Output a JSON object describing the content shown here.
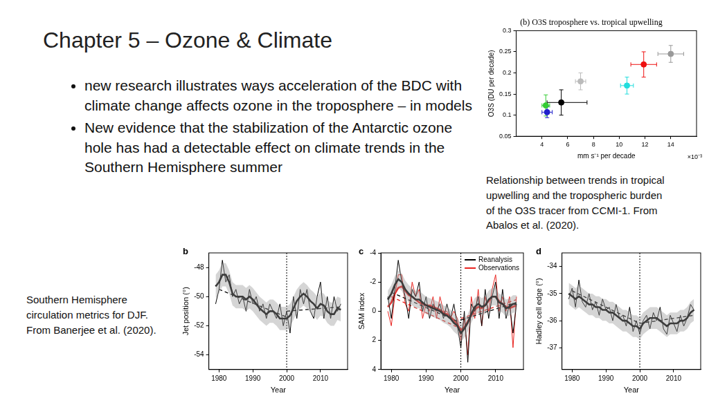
{
  "slide": {
    "title": "Chapter 5 – Ozone & Climate",
    "bullets": [
      "new research illustrates ways acceleration of the BDC with climate change affects ozone in the troposphere – in models",
      "New evidence that the stabilization of the Antarctic ozone hole has had a detectable effect on climate trends in the Southern Hemisphere summer"
    ],
    "captions": [
      [
        "Relationship between trends in tropical",
        "upwelling and the tropospheric burden",
        "of the O3S tracer from CCMI-1. From",
        "Abalos et al. (2020)."
      ],
      [
        "Southern Hemisphere",
        "circulation metrics for DJF.",
        "From Banerjee et al. (2020)."
      ]
    ]
  },
  "chart_data": [
    {
      "type": "scatter",
      "title": "(b) O3S troposphere vs. tropical upwelling",
      "x_label": "mm s⁻¹ per decade",
      "x_multiplier": "×10⁻³",
      "y_label": "O3S (DU per decade)",
      "xlim": [
        2,
        16
      ],
      "xticks": [
        4,
        6,
        8,
        10,
        12,
        14
      ],
      "ylim": [
        0.05,
        0.3
      ],
      "yticks": [
        0.05,
        0.1,
        0.15,
        0.2,
        0.25,
        0.3
      ],
      "grid": false,
      "series": [
        {
          "marker": "circle",
          "x": [
            4.3,
            4.4,
            5.5,
            7.0,
            10.6,
            11.9,
            14.0
          ],
          "values": [
            0.123,
            0.107,
            0.13,
            0.18,
            0.17,
            0.22,
            0.245
          ],
          "colors": [
            "#33cc33",
            "#1f1fcc",
            "#000000",
            "#bbbbbb",
            "#22dddd",
            "#ee1111",
            "#999999"
          ],
          "xerr": [
            [
              0.3,
              0.3
            ],
            [
              0.4,
              0.4
            ],
            [
              1.1,
              2.0
            ],
            [
              0.4,
              0.4
            ],
            [
              0.5,
              0.5
            ],
            [
              1.0,
              1.0
            ],
            [
              1.0,
              1.0
            ]
          ],
          "yerr": [
            [
              0.025,
              0.025
            ],
            [
              0.013,
              0.013
            ],
            [
              0.03,
              0.03
            ],
            [
              0.02,
              0.02
            ],
            [
              0.02,
              0.02
            ],
            [
              0.03,
              0.03
            ],
            [
              0.02,
              0.02
            ]
          ]
        }
      ]
    },
    {
      "type": "line",
      "panel": "b",
      "x_label": "Year",
      "y_label": "Jet position (°)",
      "x": [
        1979,
        1980,
        1981,
        1982,
        1983,
        1984,
        1985,
        1986,
        1987,
        1988,
        1989,
        1990,
        1991,
        1992,
        1993,
        1994,
        1995,
        1996,
        1997,
        1998,
        1999,
        2000,
        2001,
        2002,
        2003,
        2004,
        2005,
        2006,
        2007,
        2008,
        2009,
        2010,
        2011,
        2012,
        2013,
        2014,
        2015,
        2016
      ],
      "xlim": [
        1977,
        2018
      ],
      "xticks": [
        1980,
        1990,
        2000,
        2010
      ],
      "ylim": [
        -55,
        -47
      ],
      "yticks": [
        -54,
        -52,
        -50,
        -48
      ],
      "vline": 2000,
      "grid": false,
      "series": [
        {
          "color": "#000000",
          "values": [
            -50.5,
            -49.5,
            -47.5,
            -49,
            -48.5,
            -50,
            -49.5,
            -50.5,
            -50,
            -51,
            -49.5,
            -50.5,
            -50,
            -51,
            -50.5,
            -51.5,
            -50.5,
            -51,
            -51.5,
            -50.5,
            -52,
            -51,
            -52.5,
            -50,
            -51.5,
            -49.5,
            -50.5,
            -49.5,
            -51,
            -51.5,
            -50,
            -49,
            -51.5,
            -50,
            -51.5,
            -50,
            -51,
            -50.5
          ],
          "smoothed": [
            -49.3,
            -49,
            -48.5,
            -48.5,
            -49,
            -49.8,
            -50,
            -50,
            -50,
            -50.2,
            -50,
            -50.2,
            -50.5,
            -50.8,
            -51,
            -51.2,
            -51,
            -51,
            -51.2,
            -51.5,
            -51.5,
            -51.5,
            -51.3,
            -50.8,
            -50.3,
            -50,
            -49.8,
            -50,
            -50.3,
            -50.5,
            -50.8,
            -50.5,
            -50.6,
            -51,
            -51.2,
            -51.2,
            -50.8,
            -50.9
          ],
          "spread_low": [
            -50.1,
            -49.8,
            -49.3,
            -49.3,
            -49.8,
            -50.6,
            -50.8,
            -50.8,
            -50.8,
            -51,
            -50.8,
            -51,
            -51.3,
            -51.6,
            -51.8,
            -52,
            -51.8,
            -51.8,
            -52,
            -52.3,
            -52.3,
            -52.3,
            -52.1,
            -51.6,
            -51.1,
            -50.8,
            -50.6,
            -50.8,
            -51.1,
            -51.3,
            -51.6,
            -51.3,
            -51.4,
            -51.8,
            -52,
            -52,
            -51.6,
            -51.7
          ],
          "spread_high": [
            -48.5,
            -48.2,
            -47.7,
            -47.7,
            -48.2,
            -49,
            -49.2,
            -49.2,
            -49.2,
            -49.4,
            -49.2,
            -49.4,
            -49.7,
            -50,
            -50.2,
            -50.4,
            -50.2,
            -50.2,
            -50.4,
            -50.7,
            -50.7,
            -50.7,
            -50.5,
            -50,
            -49.5,
            -49.2,
            -49,
            -49.2,
            -49.5,
            -49.7,
            -50,
            -49.7,
            -49.8,
            -50.2,
            -50.4,
            -50.4,
            -50,
            -50.1
          ],
          "trend": [
            {
              "x": [
                1980,
                2000
              ],
              "values": [
                -49.5,
                -51.4
              ],
              "line_style": "dashed"
            },
            {
              "x": [
                2000,
                2016
              ],
              "values": [
                -51.0,
                -50.7
              ],
              "line_style": "dashed"
            }
          ]
        }
      ]
    },
    {
      "type": "line",
      "panel": "c",
      "x_label": "Year",
      "y_label": "SAM index",
      "x": [
        1979,
        1980,
        1981,
        1982,
        1983,
        1984,
        1985,
        1986,
        1987,
        1988,
        1989,
        1990,
        1991,
        1992,
        1993,
        1994,
        1995,
        1996,
        1997,
        1998,
        1999,
        2000,
        2001,
        2002,
        2003,
        2004,
        2005,
        2006,
        2007,
        2008,
        2009,
        2010,
        2011,
        2012,
        2013,
        2014,
        2015,
        2016
      ],
      "xlim": [
        1977,
        2018
      ],
      "xticks": [
        1980,
        1990,
        2000,
        2010
      ],
      "ylim": [
        4,
        -4
      ],
      "yticks": [
        -4,
        -2,
        0,
        2,
        4
      ],
      "vline": 2000,
      "grid": false,
      "legend": "upper right",
      "series": [
        {
          "name": "Reanalysis",
          "color": "#000000",
          "values": [
            -1,
            0.5,
            -1.5,
            -3.5,
            -2,
            -1,
            0.5,
            -1.5,
            -1,
            -2,
            0,
            -1,
            0.5,
            -0.5,
            0,
            -0.5,
            0.5,
            -0.5,
            0.5,
            -0.5,
            1,
            2.5,
            0,
            3.5,
            -0.5,
            0,
            -1,
            1,
            -1.5,
            0.5,
            -1,
            -2,
            0.5,
            -1.5,
            0.5,
            -0.5,
            1.5,
            -0.5
          ],
          "smoothed": [
            -0.8,
            -1.2,
            -1.8,
            -2.2,
            -2,
            -1.5,
            -1.2,
            -1,
            -0.8,
            -0.8,
            -0.6,
            -0.4,
            -0.3,
            -0.2,
            -0.1,
            0,
            0.2,
            0.3,
            0.5,
            0.8,
            1,
            1.5,
            1.2,
            0.8,
            0.2,
            -0.3,
            -0.5,
            -0.3,
            -0.4,
            -0.8,
            -1,
            -1,
            -0.6,
            -0.5,
            -0.2,
            -0.3,
            -0.5,
            -0.5
          ],
          "spread_low": [
            -1.4,
            -1.8,
            -2.4,
            -2.8,
            -2.6,
            -2.1,
            -1.8,
            -1.6,
            -1.4,
            -1.4,
            -1.2,
            -1,
            -0.9,
            -0.8,
            -0.7,
            -0.6,
            -0.4,
            -0.3,
            -0.1,
            0.2,
            0.4,
            0.9,
            0.6,
            0.2,
            -0.4,
            -0.9,
            -1.1,
            -0.9,
            -1,
            -1.4,
            -1.6,
            -1.6,
            -1.2,
            -1.1,
            -0.8,
            -0.9,
            -1.1,
            -1.1
          ],
          "spread_high": [
            -0.2,
            -0.6,
            -1.2,
            -1.6,
            -1.4,
            -0.9,
            -0.6,
            -0.4,
            -0.2,
            -0.2,
            0,
            0.2,
            0.3,
            0.4,
            0.5,
            0.6,
            0.8,
            0.9,
            1.1,
            1.4,
            1.6,
            2.1,
            1.8,
            1.4,
            0.8,
            0.3,
            0.1,
            0.3,
            0.2,
            -0.2,
            -0.4,
            -0.4,
            0,
            0.1,
            0.4,
            0.3,
            0.1,
            0.1
          ],
          "trend": [
            {
              "x": [
                1980,
                2000
              ],
              "values": [
                -1.3,
                0.8
              ],
              "line_style": "dashed"
            },
            {
              "x": [
                2000,
                2016
              ],
              "values": [
                0.6,
                -0.6
              ],
              "line_style": "dashed"
            }
          ]
        },
        {
          "name": "Observations",
          "color": "#e8231f",
          "values": [
            0,
            1,
            -1,
            -2.5,
            -2.5,
            -0.5,
            0,
            -2,
            -1,
            -1.5,
            0.5,
            -0.5,
            0,
            -1,
            0.5,
            -1,
            0,
            0,
            0.5,
            0,
            0.5,
            2,
            0.5,
            3,
            -1,
            0.5,
            -1.5,
            1,
            -1,
            0,
            -1.5,
            -2.5,
            0,
            -1,
            0,
            -1,
            2.5,
            -1
          ],
          "smoothed": [
            -0.3,
            -0.6,
            -1.2,
            -1.6,
            -1.7,
            -1.4,
            -1.1,
            -1,
            -0.8,
            -0.6,
            -0.5,
            -0.4,
            -0.4,
            -0.3,
            -0.2,
            -0.1,
            0.1,
            0.2,
            0.4,
            0.6,
            0.9,
            1.3,
            1.1,
            0.7,
            0.3,
            -0.1,
            -0.3,
            -0.2,
            -0.4,
            -0.7,
            -1,
            -1,
            -0.7,
            -0.5,
            -0.3,
            -0.2,
            -0.3,
            -0.4
          ],
          "trend": [
            {
              "x": [
                1980,
                2000
              ],
              "values": [
                -1.0,
                1.2
              ],
              "line_style": "dashed"
            },
            {
              "x": [
                2000,
                2016
              ],
              "values": [
                0.5,
                -0.8
              ],
              "line_style": "dashed"
            }
          ]
        }
      ]
    },
    {
      "type": "line",
      "panel": "d",
      "x_label": "Year",
      "y_label": "Hadley cell edge (°)",
      "x": [
        1979,
        1980,
        1981,
        1982,
        1983,
        1984,
        1985,
        1986,
        1987,
        1988,
        1989,
        1990,
        1991,
        1992,
        1993,
        1994,
        1995,
        1996,
        1997,
        1998,
        1999,
        2000,
        2001,
        2002,
        2003,
        2004,
        2005,
        2006,
        2007,
        2008,
        2009,
        2010,
        2011,
        2012,
        2013,
        2014,
        2015,
        2016
      ],
      "xlim": [
        1977,
        2018
      ],
      "xticks": [
        1980,
        1990,
        2000,
        2010
      ],
      "ylim": [
        -37.8,
        -33.5
      ],
      "yticks": [
        -37,
        -36,
        -35,
        -34
      ],
      "vline": 2000,
      "grid": false,
      "series": [
        {
          "color": "#000000",
          "values": [
            -35.2,
            -34.8,
            -35.5,
            -34.5,
            -35.3,
            -35.5,
            -35,
            -35.6,
            -35.3,
            -35.8,
            -35.2,
            -35.6,
            -35.5,
            -36,
            -35.4,
            -35.9,
            -35.8,
            -36.2,
            -35.5,
            -36.4,
            -36,
            -36.5,
            -36,
            -35.8,
            -36.3,
            -35.7,
            -36,
            -35.5,
            -36.3,
            -36.5,
            -35.8,
            -36.1,
            -36.4,
            -35.8,
            -36.2,
            -35.9,
            -35.4,
            -35.6
          ],
          "smoothed": [
            -35,
            -35.1,
            -35.2,
            -35.1,
            -35.2,
            -35.3,
            -35.4,
            -35.4,
            -35.5,
            -35.5,
            -35.6,
            -35.6,
            -35.7,
            -35.7,
            -35.8,
            -35.9,
            -36,
            -36,
            -36.1,
            -36.2,
            -36.2,
            -36.3,
            -36.1,
            -36,
            -35.9,
            -35.9,
            -35.9,
            -36,
            -36.1,
            -36.2,
            -36.1,
            -36.1,
            -36.1,
            -36,
            -36,
            -35.9,
            -35.7,
            -35.6
          ],
          "spread_low": [
            -35.4,
            -35.5,
            -35.6,
            -35.5,
            -35.6,
            -35.7,
            -35.8,
            -35.8,
            -35.9,
            -35.9,
            -36,
            -36,
            -36.1,
            -36.1,
            -36.2,
            -36.3,
            -36.4,
            -36.4,
            -36.5,
            -36.6,
            -36.6,
            -36.7,
            -36.5,
            -36.4,
            -36.3,
            -36.3,
            -36.3,
            -36.4,
            -36.5,
            -36.6,
            -36.5,
            -36.5,
            -36.5,
            -36.4,
            -36.4,
            -36.3,
            -36.1,
            -36
          ],
          "spread_high": [
            -34.6,
            -34.7,
            -34.8,
            -34.7,
            -34.8,
            -34.9,
            -35,
            -35,
            -35.1,
            -35.1,
            -35.2,
            -35.2,
            -35.3,
            -35.3,
            -35.4,
            -35.5,
            -35.6,
            -35.6,
            -35.7,
            -35.8,
            -35.8,
            -35.9,
            -35.7,
            -35.6,
            -35.5,
            -35.5,
            -35.5,
            -35.6,
            -35.7,
            -35.8,
            -35.7,
            -35.7,
            -35.7,
            -35.6,
            -35.6,
            -35.5,
            -35.3,
            -35.2
          ],
          "trend": [
            {
              "x": [
                1980,
                2000
              ],
              "values": [
                -34.9,
                -36.1
              ],
              "line_style": "dashed"
            },
            {
              "x": [
                2000,
                2016
              ],
              "values": [
                -36.1,
                -35.8
              ],
              "line_style": "dashed"
            }
          ]
        }
      ]
    }
  ]
}
